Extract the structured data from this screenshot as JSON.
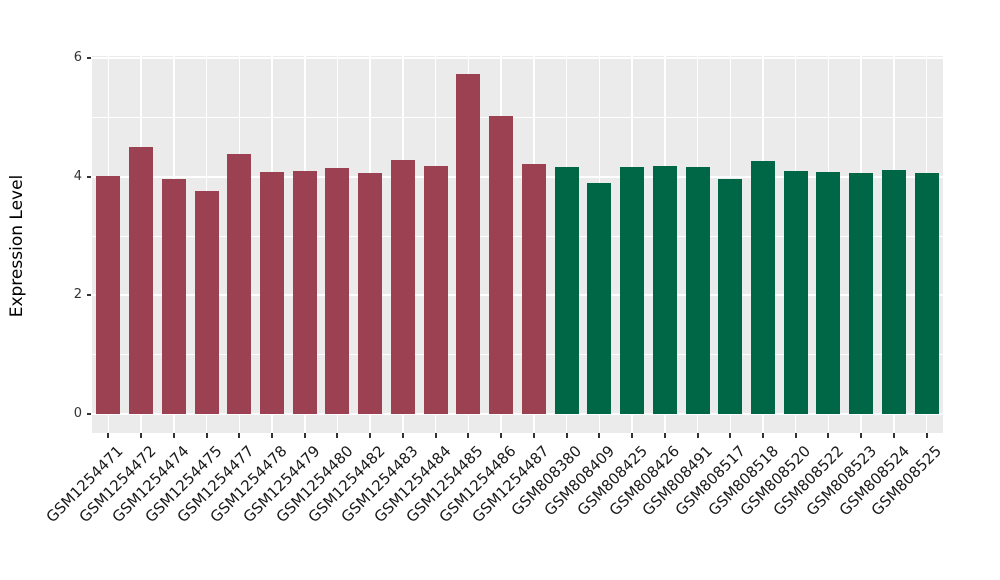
{
  "chart_data": {
    "type": "bar",
    "title": "",
    "xlabel": "",
    "ylabel": "Expression Level",
    "ylim": [
      0,
      6.03
    ],
    "yticks": [
      "0",
      "2",
      "4",
      "6"
    ],
    "ytick_values": [
      0,
      2,
      4,
      6
    ],
    "minor_gridlines": [
      1,
      3,
      5
    ],
    "grid": "on",
    "legend": "none",
    "panel_background": "#EBEBEB",
    "gridline_color": "#FFFFFF",
    "tick_color": "#333333",
    "group_colors": {
      "GSM1254xxx": "#9C4152",
      "GSM808xxx": "#006746"
    },
    "categories": [
      "GSM1254471",
      "GSM1254472",
      "GSM1254474",
      "GSM1254475",
      "GSM1254477",
      "GSM1254478",
      "GSM1254479",
      "GSM1254480",
      "GSM1254482",
      "GSM1254483",
      "GSM1254484",
      "GSM1254485",
      "GSM1254486",
      "GSM1254487",
      "GSM808380",
      "GSM808409",
      "GSM808425",
      "GSM808426",
      "GSM808491",
      "GSM808517",
      "GSM808518",
      "GSM808520",
      "GSM808522",
      "GSM808523",
      "GSM808524",
      "GSM808525"
    ],
    "values": [
      4.02,
      4.5,
      3.97,
      3.76,
      4.38,
      4.08,
      4.1,
      4.15,
      4.06,
      4.28,
      4.18,
      5.74,
      5.03,
      4.21,
      4.17,
      3.89,
      4.16,
      4.19,
      4.16,
      3.97,
      4.27,
      4.1,
      4.08,
      4.07,
      4.12,
      4.06
    ],
    "bar_colors": [
      "#9C4152",
      "#9C4152",
      "#9C4152",
      "#9C4152",
      "#9C4152",
      "#9C4152",
      "#9C4152",
      "#9C4152",
      "#9C4152",
      "#9C4152",
      "#9C4152",
      "#9C4152",
      "#9C4152",
      "#9C4152",
      "#006746",
      "#006746",
      "#006746",
      "#006746",
      "#006746",
      "#006746",
      "#006746",
      "#006746",
      "#006746",
      "#006746",
      "#006746",
      "#006746"
    ]
  }
}
